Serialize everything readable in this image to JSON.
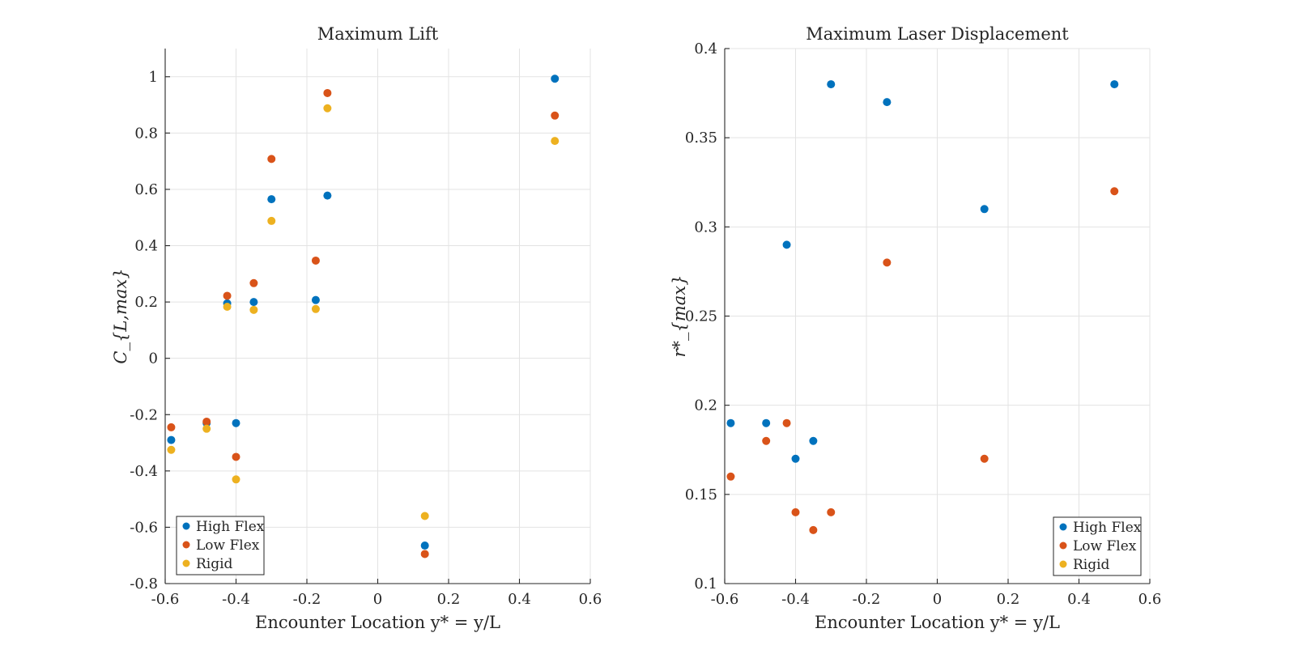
{
  "colors": {
    "High Flex": "#0072BD",
    "Low Flex": "#D95319",
    "Rigid": "#EDB120"
  },
  "chart_data": [
    {
      "type": "scatter",
      "title": "Maximum Lift",
      "xlabel": "Encounter Location y* = y/L",
      "ylabel": "C_{L,max}",
      "xlim": [
        -0.6,
        0.6
      ],
      "ylim": [
        -0.8,
        1.1
      ],
      "xticks": [
        "-0.6",
        "-0.4",
        "-0.2",
        "0",
        "0.2",
        "0.4",
        "0.6"
      ],
      "yticks": [
        "-0.8",
        "-0.6",
        "-0.4",
        "-0.2",
        "0",
        "0.2",
        "0.4",
        "0.6",
        "0.8",
        "1"
      ],
      "grid": true,
      "legend_position": "bottom-left",
      "series": [
        {
          "name": "High Flex",
          "x": [
            -0.583,
            -0.483,
            -0.425,
            -0.4,
            -0.35,
            -0.3,
            -0.175,
            -0.142,
            0.133,
            0.5
          ],
          "y": [
            -0.29,
            -0.23,
            0.195,
            -0.23,
            0.2,
            0.565,
            0.207,
            0.578,
            -0.665,
            0.993
          ]
        },
        {
          "name": "Low Flex",
          "x": [
            -0.583,
            -0.483,
            -0.425,
            -0.4,
            -0.35,
            -0.3,
            -0.175,
            -0.142,
            0.133,
            0.5
          ],
          "y": [
            -0.245,
            -0.225,
            0.222,
            -0.35,
            0.267,
            0.708,
            0.347,
            0.942,
            -0.695,
            0.862
          ]
        },
        {
          "name": "Rigid",
          "x": [
            -0.583,
            -0.483,
            -0.425,
            -0.4,
            -0.35,
            -0.3,
            -0.175,
            -0.142,
            0.133,
            0.5
          ],
          "y": [
            -0.325,
            -0.25,
            0.183,
            -0.43,
            0.172,
            0.488,
            0.175,
            0.888,
            -0.56,
            0.772
          ]
        }
      ]
    },
    {
      "type": "scatter",
      "title": "Maximum Laser Displacement",
      "xlabel": "Encounter Location y* = y/L",
      "ylabel": "r*_{max}",
      "xlim": [
        -0.6,
        0.6
      ],
      "ylim": [
        0.1,
        0.4
      ],
      "xticks": [
        "-0.6",
        "-0.4",
        "-0.2",
        "0",
        "0.2",
        "0.4",
        "0.6"
      ],
      "yticks": [
        "0.1",
        "0.15",
        "0.2",
        "0.25",
        "0.3",
        "0.35",
        "0.4"
      ],
      "grid": true,
      "legend_position": "bottom-right",
      "series": [
        {
          "name": "High Flex",
          "x": [
            -0.583,
            -0.483,
            -0.425,
            -0.4,
            -0.35,
            -0.3,
            -0.142,
            0.133,
            0.5
          ],
          "y": [
            0.19,
            0.19,
            0.29,
            0.17,
            0.18,
            0.38,
            0.37,
            0.31,
            0.38
          ]
        },
        {
          "name": "Low Flex",
          "x": [
            -0.583,
            -0.483,
            -0.425,
            -0.4,
            -0.35,
            -0.3,
            -0.142,
            0.133,
            0.5
          ],
          "y": [
            0.16,
            0.18,
            0.19,
            0.14,
            0.13,
            0.14,
            0.28,
            0.17,
            0.32
          ]
        },
        {
          "name": "Rigid",
          "x": [],
          "y": []
        }
      ]
    }
  ]
}
